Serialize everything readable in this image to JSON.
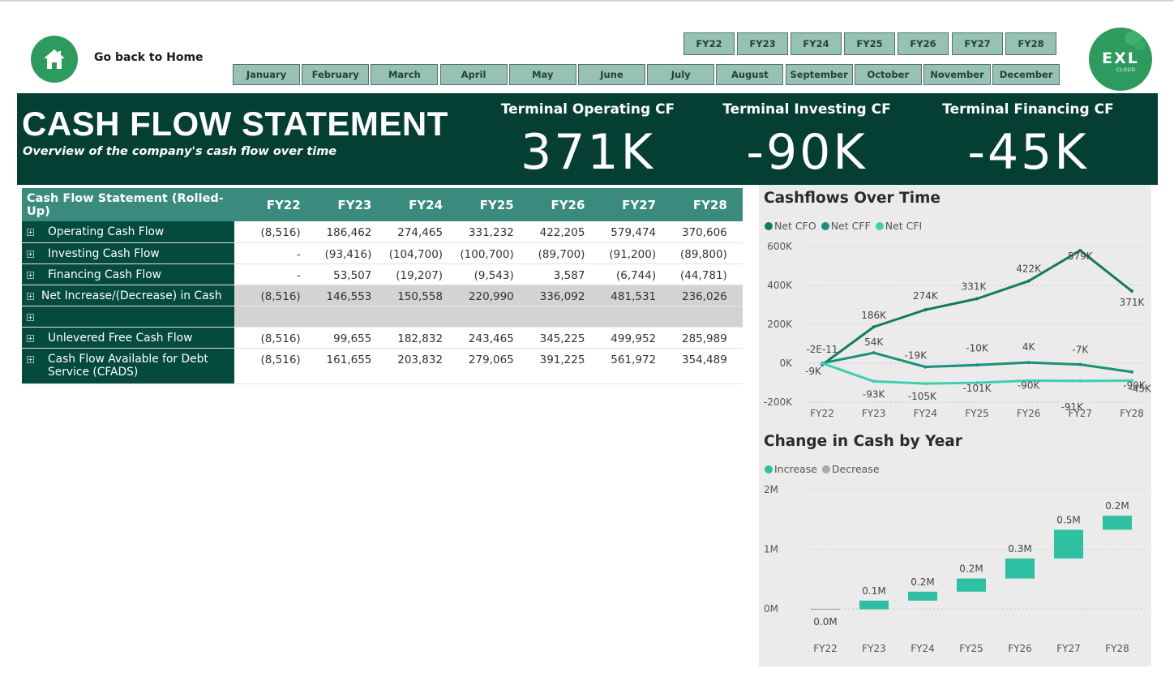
{
  "nav": {
    "home_label": "Go back to Home",
    "fiscal_years": [
      "FY22",
      "FY23",
      "FY24",
      "FY25",
      "FY26",
      "FY27",
      "FY28"
    ],
    "months": [
      "January",
      "February",
      "March",
      "April",
      "May",
      "June",
      "July",
      "August",
      "September",
      "October",
      "November",
      "December"
    ]
  },
  "logo": {
    "text": "EXL",
    "subtext": "CLOUD"
  },
  "header": {
    "title": "CASH FLOW STATEMENT",
    "subtitle": "Overview of the company's cash flow over time",
    "kpis": [
      {
        "label": "Terminal Operating CF",
        "value": "371K"
      },
      {
        "label": "Terminal Investing CF",
        "value": "-90K"
      },
      {
        "label": "Terminal Financing CF",
        "value": "-45K"
      }
    ]
  },
  "table": {
    "title": "Cash Flow Statement (Rolled-Up)",
    "columns": [
      "FY22",
      "FY23",
      "FY24",
      "FY25",
      "FY26",
      "FY27",
      "FY28"
    ],
    "rows": [
      {
        "label": "Operating Cash Flow",
        "values": [
          "(8,516)",
          "186,462",
          "274,465",
          "331,232",
          "422,205",
          "579,474",
          "370,606"
        ]
      },
      {
        "label": "Investing Cash Flow",
        "values": [
          "-",
          "(93,416)",
          "(104,700)",
          "(100,700)",
          "(89,700)",
          "(91,200)",
          "(89,800)"
        ]
      },
      {
        "label": "Financing Cash Flow",
        "values": [
          "-",
          "53,507",
          "(19,207)",
          "(9,543)",
          "3,587",
          "(6,744)",
          "(44,781)"
        ]
      },
      {
        "label": "Net Increase/(Decrease) in Cash",
        "values": [
          "(8,516)",
          "146,553",
          "150,558",
          "220,990",
          "336,092",
          "481,531",
          "236,026"
        ]
      },
      {
        "label": "",
        "values": [
          "",
          "",
          "",
          "",
          "",
          "",
          ""
        ]
      },
      {
        "label": "Unlevered Free Cash Flow",
        "values": [
          "(8,516)",
          "99,655",
          "182,832",
          "243,465",
          "345,225",
          "499,952",
          "285,989"
        ]
      },
      {
        "label": "Cash Flow Available for Debt Service (CFADS)",
        "values": [
          "(8,516)",
          "161,655",
          "203,832",
          "279,065",
          "391,225",
          "561,972",
          "354,489"
        ]
      }
    ]
  },
  "chart_data": [
    {
      "type": "line",
      "title": "Cashflows Over Time",
      "x": [
        "FY22",
        "FY23",
        "FY24",
        "FY25",
        "FY26",
        "FY27",
        "FY28"
      ],
      "ylim": [
        -200000,
        600000
      ],
      "yticks": [
        "600K",
        "400K",
        "200K",
        "0K",
        "-200K"
      ],
      "legend_position": "top-left",
      "grid": true,
      "series": [
        {
          "name": "Net CFO",
          "color": "#147a5e",
          "values": [
            -8516,
            186462,
            274465,
            331232,
            422205,
            579474,
            370606
          ],
          "labels": [
            "-9K",
            "186K",
            "274K",
            "331K",
            "422K",
            "579K",
            "371K"
          ]
        },
        {
          "name": "Net CFF",
          "color": "#1b9078",
          "values": [
            0,
            53507,
            -19207,
            -9543,
            3587,
            -6744,
            -44781
          ],
          "labels": [
            "-2E-11",
            "54K",
            "-19K",
            "-10K",
            "4K",
            "-7K",
            "-45K"
          ]
        },
        {
          "name": "Net CFI",
          "color": "#3fcfb0",
          "values": [
            0,
            -93416,
            -104700,
            -100700,
            -89700,
            -91200,
            -89800
          ],
          "labels": [
            "",
            "-93K",
            "-105K",
            "-101K",
            "-90K",
            "-91K",
            "-90K"
          ]
        }
      ]
    },
    {
      "type": "bar",
      "subtype": "waterfall",
      "title": "Change in Cash by Year",
      "categories": [
        "FY22",
        "FY23",
        "FY24",
        "FY25",
        "FY26",
        "FY27",
        "FY28"
      ],
      "ylim": [
        0,
        2000000
      ],
      "yticks": [
        "2M",
        "1M",
        "0M"
      ],
      "legend_position": "top-left",
      "grid": true,
      "series": [
        {
          "name": "Increase",
          "color": "#2fbfa2"
        },
        {
          "name": "Decrease",
          "color": "#a9a9a9"
        }
      ],
      "values": [
        -8516,
        146553,
        150558,
        220990,
        336092,
        481531,
        236026
      ],
      "labels": [
        "0.0M",
        "0.1M",
        "0.2M",
        "0.2M",
        "0.3M",
        "0.5M",
        "0.2M"
      ]
    }
  ]
}
